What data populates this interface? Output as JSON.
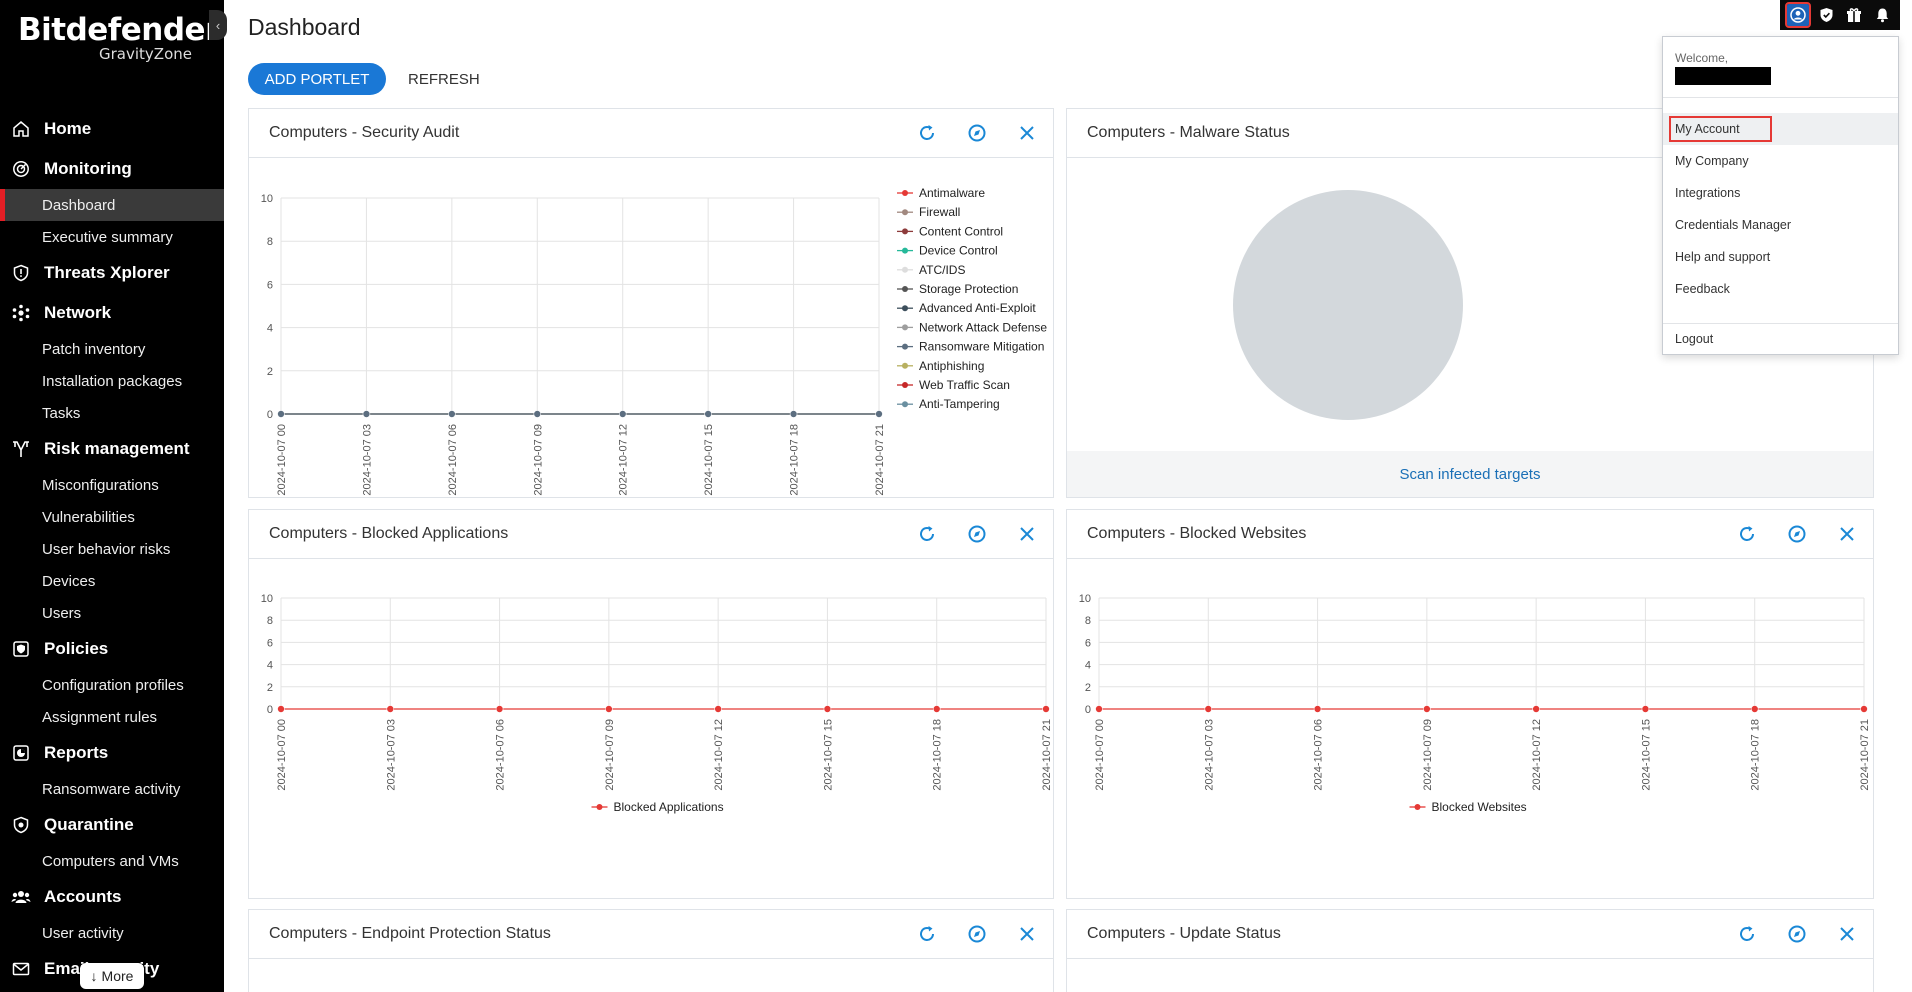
{
  "brand": {
    "name": "Bitdefender",
    "product": "GravityZone"
  },
  "nav": {
    "sections": [
      {
        "label": "Home",
        "icon": "home-icon",
        "items": []
      },
      {
        "label": "Monitoring",
        "icon": "monitoring-icon",
        "items": [
          {
            "label": "Dashboard",
            "active": true
          },
          {
            "label": "Executive summary"
          }
        ]
      },
      {
        "label": "Threats Xplorer",
        "icon": "shield-icon",
        "items": []
      },
      {
        "label": "Network",
        "icon": "network-icon",
        "items": [
          {
            "label": "Patch inventory"
          },
          {
            "label": "Installation packages"
          },
          {
            "label": "Tasks"
          }
        ]
      },
      {
        "label": "Risk management",
        "icon": "risk-icon",
        "items": [
          {
            "label": "Misconfigurations"
          },
          {
            "label": "Vulnerabilities"
          },
          {
            "label": "User behavior risks"
          },
          {
            "label": "Devices"
          },
          {
            "label": "Users"
          }
        ]
      },
      {
        "label": "Policies",
        "icon": "policy-icon",
        "items": [
          {
            "label": "Configuration profiles"
          },
          {
            "label": "Assignment rules"
          }
        ]
      },
      {
        "label": "Reports",
        "icon": "reports-icon",
        "items": [
          {
            "label": "Ransomware activity"
          }
        ]
      },
      {
        "label": "Quarantine",
        "icon": "quarantine-icon",
        "items": [
          {
            "label": "Computers and VMs"
          }
        ]
      },
      {
        "label": "Accounts",
        "icon": "accounts-icon",
        "items": [
          {
            "label": "User activity"
          }
        ]
      },
      {
        "label": "Email security",
        "icon": "email-icon",
        "items": []
      }
    ],
    "more_label": "More"
  },
  "page": {
    "title": "Dashboard",
    "add_portlet": "ADD PORTLET",
    "refresh": "REFRESH"
  },
  "topbar": {
    "icons": [
      "user-icon",
      "shield-check-icon",
      "gift-icon",
      "bell-icon"
    ]
  },
  "account_menu": {
    "welcome": "Welcome,",
    "items": [
      "My Account",
      "My Company",
      "Integrations",
      "Credentials Manager",
      "Help and support",
      "Feedback"
    ],
    "logout": "Logout"
  },
  "portlets": {
    "security_audit": {
      "title": "Computers - Security Audit"
    },
    "malware_status": {
      "title": "Computers - Malware Status",
      "link": "Scan infected targets"
    },
    "blocked_apps": {
      "title": "Computers - Blocked Applications"
    },
    "blocked_sites": {
      "title": "Computers - Blocked Websites"
    },
    "endpoint_status": {
      "title": "Computers - Endpoint Protection Status"
    },
    "update_status": {
      "title": "Computers - Update Status"
    }
  },
  "chart_data": [
    {
      "type": "line",
      "x": [
        "2024-10-07 00",
        "2024-10-07 03",
        "2024-10-07 06",
        "2024-10-07 09",
        "2024-10-07 12",
        "2024-10-07 15",
        "2024-10-07 18",
        "2024-10-07 21"
      ],
      "ylim": [
        0,
        10
      ],
      "yticks": [
        0,
        2,
        4,
        6,
        8,
        10
      ],
      "series": [
        {
          "name": "Antimalware",
          "color": "#e53935",
          "values": [
            0,
            0,
            0,
            0,
            0,
            0,
            0,
            0
          ]
        },
        {
          "name": "Firewall",
          "color": "#a1887f",
          "values": [
            0,
            0,
            0,
            0,
            0,
            0,
            0,
            0
          ]
        },
        {
          "name": "Content Control",
          "color": "#8d3b3b",
          "values": [
            0,
            0,
            0,
            0,
            0,
            0,
            0,
            0
          ]
        },
        {
          "name": "Device Control",
          "color": "#26b99a",
          "values": [
            0,
            0,
            0,
            0,
            0,
            0,
            0,
            0
          ]
        },
        {
          "name": "ATC/IDS",
          "color": "#dddddd",
          "values": [
            0,
            0,
            0,
            0,
            0,
            0,
            0,
            0
          ]
        },
        {
          "name": "Storage Protection",
          "color": "#555555",
          "values": [
            0,
            0,
            0,
            0,
            0,
            0,
            0,
            0
          ]
        },
        {
          "name": "Advanced Anti-Exploit",
          "color": "#3d4f5c",
          "values": [
            0,
            0,
            0,
            0,
            0,
            0,
            0,
            0
          ]
        },
        {
          "name": "Network Attack Defense",
          "color": "#9e9e9e",
          "values": [
            0,
            0,
            0,
            0,
            0,
            0,
            0,
            0
          ]
        },
        {
          "name": "Ransomware Mitigation",
          "color": "#5c6e80",
          "values": [
            0,
            0,
            0,
            0,
            0,
            0,
            0,
            0
          ]
        },
        {
          "name": "Antiphishing",
          "color": "#b8b060",
          "values": [
            0,
            0,
            0,
            0,
            0,
            0,
            0,
            0
          ]
        },
        {
          "name": "Web Traffic Scan",
          "color": "#c62828",
          "values": [
            0,
            0,
            0,
            0,
            0,
            0,
            0,
            0
          ]
        },
        {
          "name": "Anti-Tampering",
          "color": "#6a8fa0",
          "values": [
            0,
            0,
            0,
            0,
            0,
            0,
            0,
            0
          ]
        }
      ],
      "legend": "right"
    },
    {
      "type": "pie",
      "slices": [
        {
          "label": "",
          "value": 1,
          "color": "#d3d8dc"
        }
      ]
    },
    {
      "type": "line",
      "x": [
        "2024-10-07 00",
        "2024-10-07 03",
        "2024-10-07 06",
        "2024-10-07 09",
        "2024-10-07 12",
        "2024-10-07 15",
        "2024-10-07 18",
        "2024-10-07 21"
      ],
      "ylim": [
        0,
        10
      ],
      "yticks": [
        0,
        2,
        4,
        6,
        8,
        10
      ],
      "series": [
        {
          "name": "Blocked Applications",
          "color": "#e53935",
          "values": [
            0,
            0,
            0,
            0,
            0,
            0,
            0,
            0
          ]
        }
      ],
      "legend": "bottom"
    },
    {
      "type": "line",
      "x": [
        "2024-10-07 00",
        "2024-10-07 03",
        "2024-10-07 06",
        "2024-10-07 09",
        "2024-10-07 12",
        "2024-10-07 15",
        "2024-10-07 18",
        "2024-10-07 21"
      ],
      "ylim": [
        0,
        10
      ],
      "yticks": [
        0,
        2,
        4,
        6,
        8,
        10
      ],
      "series": [
        {
          "name": "Blocked Websites",
          "color": "#e53935",
          "values": [
            0,
            0,
            0,
            0,
            0,
            0,
            0,
            0
          ]
        }
      ],
      "legend": "bottom"
    }
  ]
}
